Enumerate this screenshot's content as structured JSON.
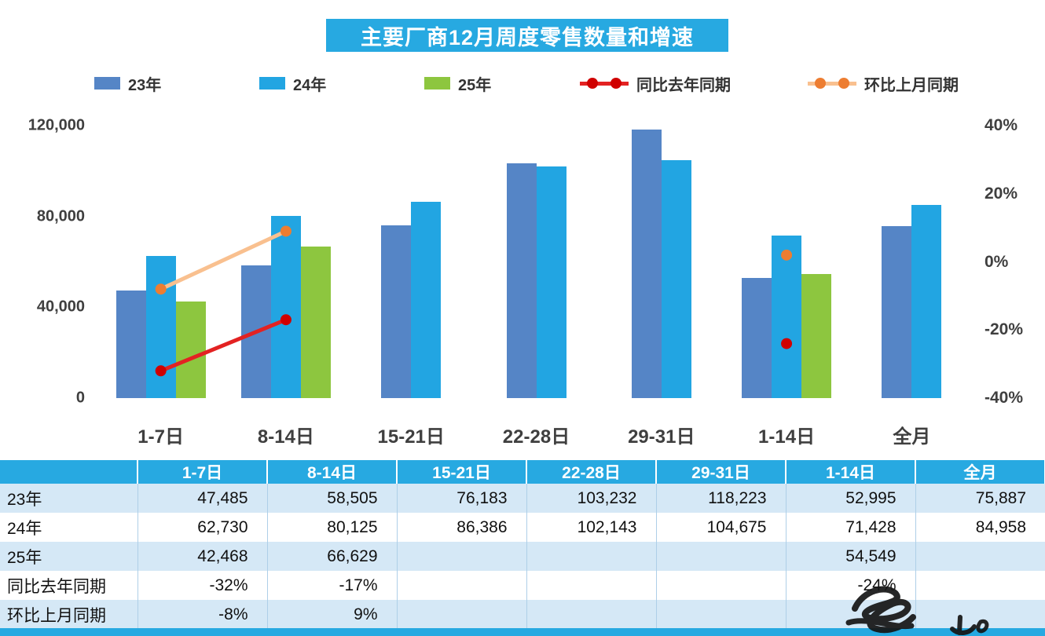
{
  "title": "主要厂商12月周度零售数量和增速",
  "colors": {
    "accent_blue": "#27A9E1",
    "bar_23": "#5585C6",
    "bar_24": "#22A5E2",
    "bar_25": "#8DC63F",
    "line_yoy": "#E32222",
    "dot_yoy": "#D00000",
    "line_mom": "#F9C08F",
    "dot_mom": "#ED7D31",
    "row_band": "#D5E8F6"
  },
  "legend": [
    {
      "label": "23年",
      "type": "bar",
      "color": "#5585C6"
    },
    {
      "label": "24年",
      "type": "bar",
      "color": "#22A5E2"
    },
    {
      "label": "25年",
      "type": "bar",
      "color": "#8DC63F"
    },
    {
      "label": "同比去年同期",
      "type": "line",
      "color": "#E32222",
      "dot": "#D00000"
    },
    {
      "label": "环比上月同期",
      "type": "line",
      "color": "#F9C08F",
      "dot": "#ED7D31"
    }
  ],
  "chart_data": {
    "type": "bar",
    "title": "主要厂商12月周度零售数量和增速",
    "categories": [
      "1-7日",
      "8-14日",
      "15-21日",
      "22-28日",
      "29-31日",
      "1-14日",
      "全月"
    ],
    "series": [
      {
        "name": "23年",
        "type": "bar",
        "color": "#5585C6",
        "values": [
          47485,
          58505,
          76183,
          103232,
          118223,
          52995,
          75887
        ]
      },
      {
        "name": "24年",
        "type": "bar",
        "color": "#22A5E2",
        "values": [
          62730,
          80125,
          86386,
          102143,
          104675,
          71428,
          84958
        ]
      },
      {
        "name": "25年",
        "type": "bar",
        "color": "#8DC63F",
        "values": [
          42468,
          66629,
          null,
          null,
          null,
          54549,
          null
        ]
      },
      {
        "name": "同比去年同期",
        "type": "line",
        "axis": "right",
        "unit": "%",
        "color": "#E32222",
        "dot_color": "#D00000",
        "values": [
          -32,
          -17,
          null,
          null,
          null,
          -24,
          null
        ]
      },
      {
        "name": "环比上月同期",
        "type": "line",
        "axis": "right",
        "unit": "%",
        "color": "#F9C08F",
        "dot_color": "#ED7D31",
        "values": [
          -8,
          9,
          null,
          null,
          null,
          2,
          null
        ]
      }
    ],
    "left_axis": {
      "min": 0,
      "max": 120000,
      "ticks": [
        "0",
        "40,000",
        "80,000",
        "120,000"
      ],
      "tick_values": [
        0,
        40000,
        80000,
        120000
      ]
    },
    "right_axis": {
      "min": -40,
      "max": 40,
      "ticks": [
        "-40%",
        "-20%",
        "0%",
        "20%",
        "40%"
      ],
      "tick_values": [
        -40,
        -20,
        0,
        20,
        40
      ]
    },
    "grid": false,
    "legend_position": "top"
  },
  "table": {
    "header": [
      "",
      "1-7日",
      "8-14日",
      "15-21日",
      "22-28日",
      "29-31日",
      "1-14日",
      "全月"
    ],
    "rows": [
      {
        "label": "23年",
        "cells": [
          "47,485",
          "58,505",
          "76,183",
          "103,232",
          "118,223",
          "52,995",
          "75,887"
        ]
      },
      {
        "label": "24年",
        "cells": [
          "62,730",
          "80,125",
          "86,386",
          "102,143",
          "104,675",
          "71,428",
          "84,958"
        ]
      },
      {
        "label": "25年",
        "cells": [
          "42,468",
          "66,629",
          "",
          "",
          "",
          "54,549",
          ""
        ]
      },
      {
        "label": "同比去年同期",
        "cells": [
          "-32%",
          "-17%",
          "",
          "",
          "",
          "-24%",
          ""
        ]
      },
      {
        "label": "环比上月同期",
        "cells": [
          "-8%",
          "9%",
          "",
          "",
          "",
          "",
          ""
        ]
      }
    ]
  }
}
